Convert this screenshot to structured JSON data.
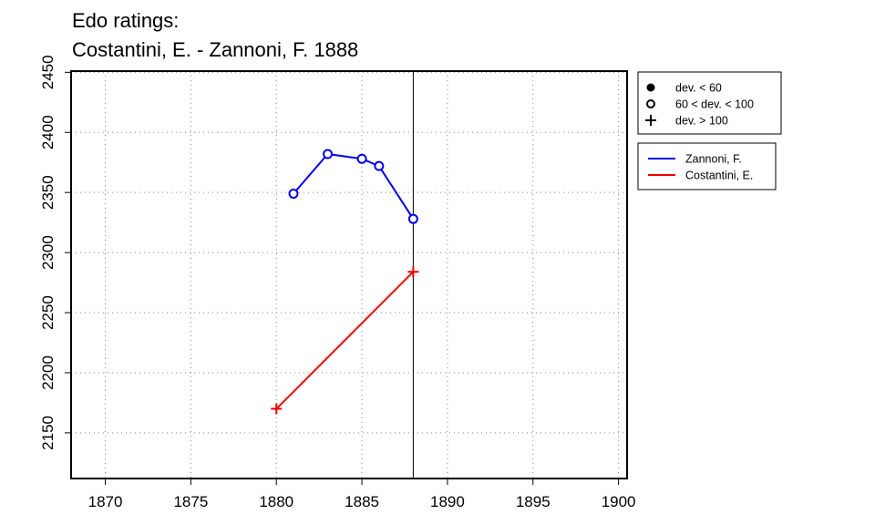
{
  "chart_data": {
    "type": "line",
    "title_lines": [
      "Edo ratings:",
      "Costantini, E. - Zannoni, F. 1888"
    ],
    "xlabel": "",
    "ylabel": "",
    "xlim": [
      1868,
      1900.5
    ],
    "ylim": [
      2112,
      2451
    ],
    "x_ticks": [
      1870,
      1875,
      1880,
      1885,
      1890,
      1895,
      1900
    ],
    "y_ticks": [
      2150,
      2200,
      2250,
      2300,
      2350,
      2400,
      2450
    ],
    "grid": true,
    "reference_line_x": 1888,
    "series": [
      {
        "name": "Zannoni, F.",
        "color": "#0000ee",
        "points": [
          {
            "x": 1881,
            "y": 2349,
            "marker": "open-circle"
          },
          {
            "x": 1883,
            "y": 2382,
            "marker": "open-circle"
          },
          {
            "x": 1885,
            "y": 2378,
            "marker": "open-circle"
          },
          {
            "x": 1886,
            "y": 2372,
            "marker": "open-circle"
          },
          {
            "x": 1888,
            "y": 2328,
            "marker": "open-circle"
          }
        ]
      },
      {
        "name": "Costantini, E.",
        "color": "#ee0000",
        "points": [
          {
            "x": 1880,
            "y": 2170,
            "marker": "plus"
          },
          {
            "x": 1888,
            "y": 2284,
            "marker": "plus"
          }
        ]
      }
    ],
    "marker_legend": [
      {
        "marker": "filled-circle",
        "label": "dev. < 60"
      },
      {
        "marker": "open-circle",
        "label": "60 < dev. < 100"
      },
      {
        "marker": "plus",
        "label": "dev. > 100"
      }
    ],
    "legend_placement": "right"
  }
}
